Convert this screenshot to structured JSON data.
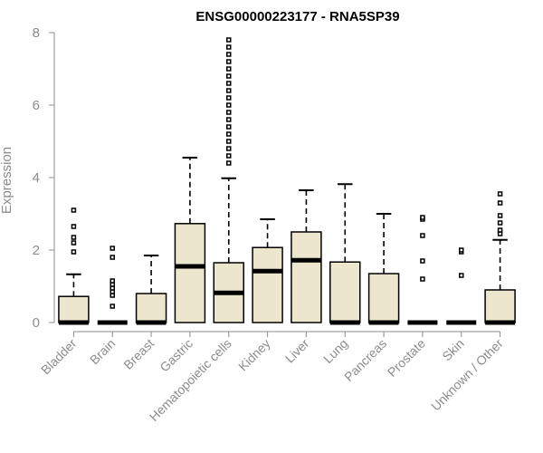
{
  "chart_data": {
    "type": "boxplot",
    "title": "ENSG00000223177 - RNA5SP39",
    "ylabel": "Expression",
    "xlabel": "",
    "ylim": [
      0,
      8
    ],
    "yticks": [
      0,
      2,
      4,
      6,
      8
    ],
    "box_fill": "#ede6cf",
    "box_stroke": "#000000",
    "categories": [
      "Bladder",
      "Brain",
      "Breast",
      "Gastric",
      "Hematopoietic cells",
      "Kidney",
      "Liver",
      "Lung",
      "Pancreas",
      "Prostate",
      "Skin",
      "Unknown / Other"
    ],
    "boxes": [
      {
        "q1": 0,
        "median": 0,
        "q3": 0.72,
        "whisker_low": 0,
        "whisker_high": 1.33,
        "outliers": [
          1.95,
          2.2,
          2.35,
          2.65,
          3.1
        ]
      },
      {
        "q1": 0,
        "median": 0,
        "q3": 0,
        "whisker_low": 0,
        "whisker_high": 0,
        "outliers": [
          0.45,
          0.75,
          0.85,
          0.95,
          1.05,
          1.15,
          1.8,
          2.05
        ]
      },
      {
        "q1": 0,
        "median": 0,
        "q3": 0.8,
        "whisker_low": 0,
        "whisker_high": 1.85,
        "outliers": []
      },
      {
        "q1": 0,
        "median": 1.55,
        "q3": 2.73,
        "whisker_low": 0,
        "whisker_high": 4.55,
        "outliers": []
      },
      {
        "q1": 0,
        "median": 0.82,
        "q3": 1.65,
        "whisker_low": 0,
        "whisker_high": 3.98,
        "outliers": [
          4.4,
          4.6,
          4.8,
          5.0,
          5.2,
          5.4,
          5.6,
          5.8,
          6.0,
          6.2,
          6.4,
          6.6,
          6.8,
          7.0,
          7.2,
          7.4,
          7.6,
          7.8
        ]
      },
      {
        "q1": 0,
        "median": 1.42,
        "q3": 2.07,
        "whisker_low": 0,
        "whisker_high": 2.85,
        "outliers": []
      },
      {
        "q1": 0,
        "median": 1.72,
        "q3": 2.5,
        "whisker_low": 0,
        "whisker_high": 3.65,
        "outliers": []
      },
      {
        "q1": 0,
        "median": 0,
        "q3": 1.67,
        "whisker_low": 0,
        "whisker_high": 3.82,
        "outliers": []
      },
      {
        "q1": 0,
        "median": 0,
        "q3": 1.35,
        "whisker_low": 0,
        "whisker_high": 3.0,
        "outliers": []
      },
      {
        "q1": 0,
        "median": 0,
        "q3": 0,
        "whisker_low": 0,
        "whisker_high": 0,
        "outliers": [
          1.2,
          1.7,
          2.4,
          2.85,
          2.9
        ]
      },
      {
        "q1": 0,
        "median": 0,
        "q3": 0,
        "whisker_low": 0,
        "whisker_high": 0,
        "outliers": [
          1.3,
          1.95,
          2.0
        ]
      },
      {
        "q1": 0,
        "median": 0,
        "q3": 0.9,
        "whisker_low": 0,
        "whisker_high": 2.28,
        "outliers": [
          2.45,
          2.55,
          2.75,
          2.95,
          3.3,
          3.55
        ]
      }
    ]
  }
}
